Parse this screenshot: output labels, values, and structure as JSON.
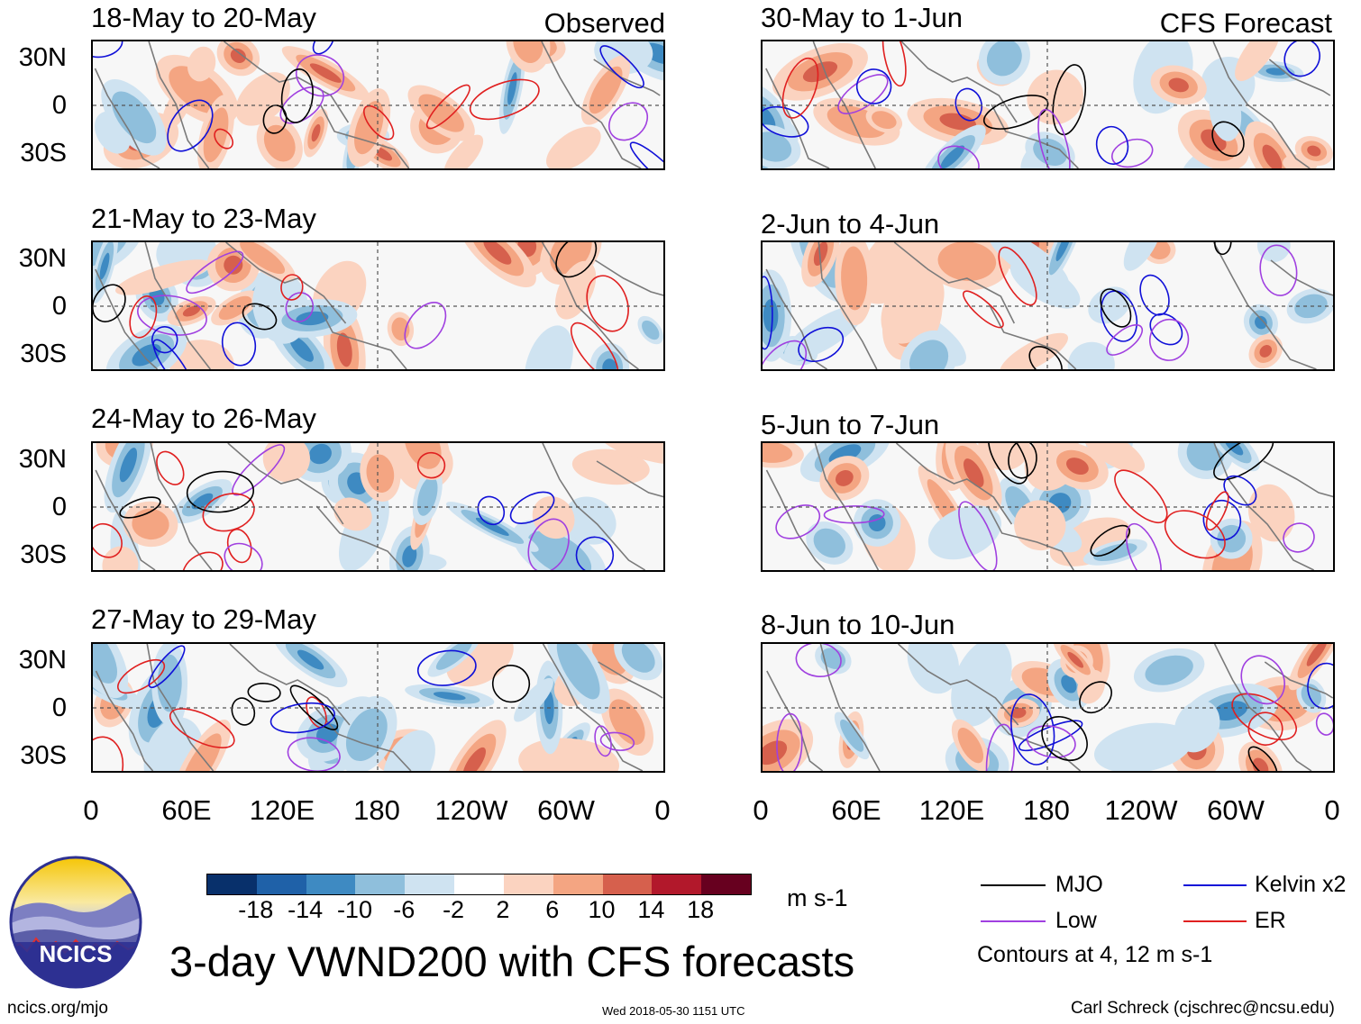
{
  "header": {
    "left_label": "Observed",
    "right_label": "CFS Forecast"
  },
  "panels": {
    "left": [
      {
        "title": "18-May to 20-May"
      },
      {
        "title": "21-May to 23-May"
      },
      {
        "title": "24-May to 26-May"
      },
      {
        "title": "27-May to 29-May"
      }
    ],
    "right": [
      {
        "title": "30-May to 1-Jun"
      },
      {
        "title": "2-Jun to 4-Jun"
      },
      {
        "title": "5-Jun to 7-Jun"
      },
      {
        "title": "8-Jun to 10-Jun"
      }
    ]
  },
  "axes": {
    "lat_labels": [
      "30N",
      "0",
      "30S"
    ],
    "lon_labels": [
      "0",
      "60E",
      "120E",
      "180",
      "120W",
      "60W",
      "0"
    ]
  },
  "colorbar": {
    "colors": [
      "#08306b",
      "#1f61a8",
      "#3e8ac2",
      "#8fbfdc",
      "#cfe3f1",
      "#ffffff",
      "#fbd3c0",
      "#f4a582",
      "#d6604d",
      "#b2182b",
      "#67001f"
    ],
    "ticks": [
      "-18",
      "-14",
      "-10",
      "-6",
      "-2",
      "2",
      "6",
      "10",
      "14",
      "18"
    ],
    "units": "m s-1"
  },
  "legend": {
    "items": [
      {
        "label": "MJO",
        "color": "#000000"
      },
      {
        "label": "Kelvin x2",
        "color": "#1010d8"
      },
      {
        "label": "Low",
        "color": "#a040e0"
      },
      {
        "label": "ER",
        "color": "#e02020"
      }
    ],
    "note": "Contours at 4, 12 m s-1"
  },
  "footer": {
    "logo_text": "NCICS",
    "main_title": "3-day VWND200 with CFS forecasts",
    "url": "ncics.org/mjo",
    "timestamp": "Wed 2018-05-30 1151 UTC",
    "author": "Carl Schreck (cjschrec@ncsu.edu)"
  }
}
